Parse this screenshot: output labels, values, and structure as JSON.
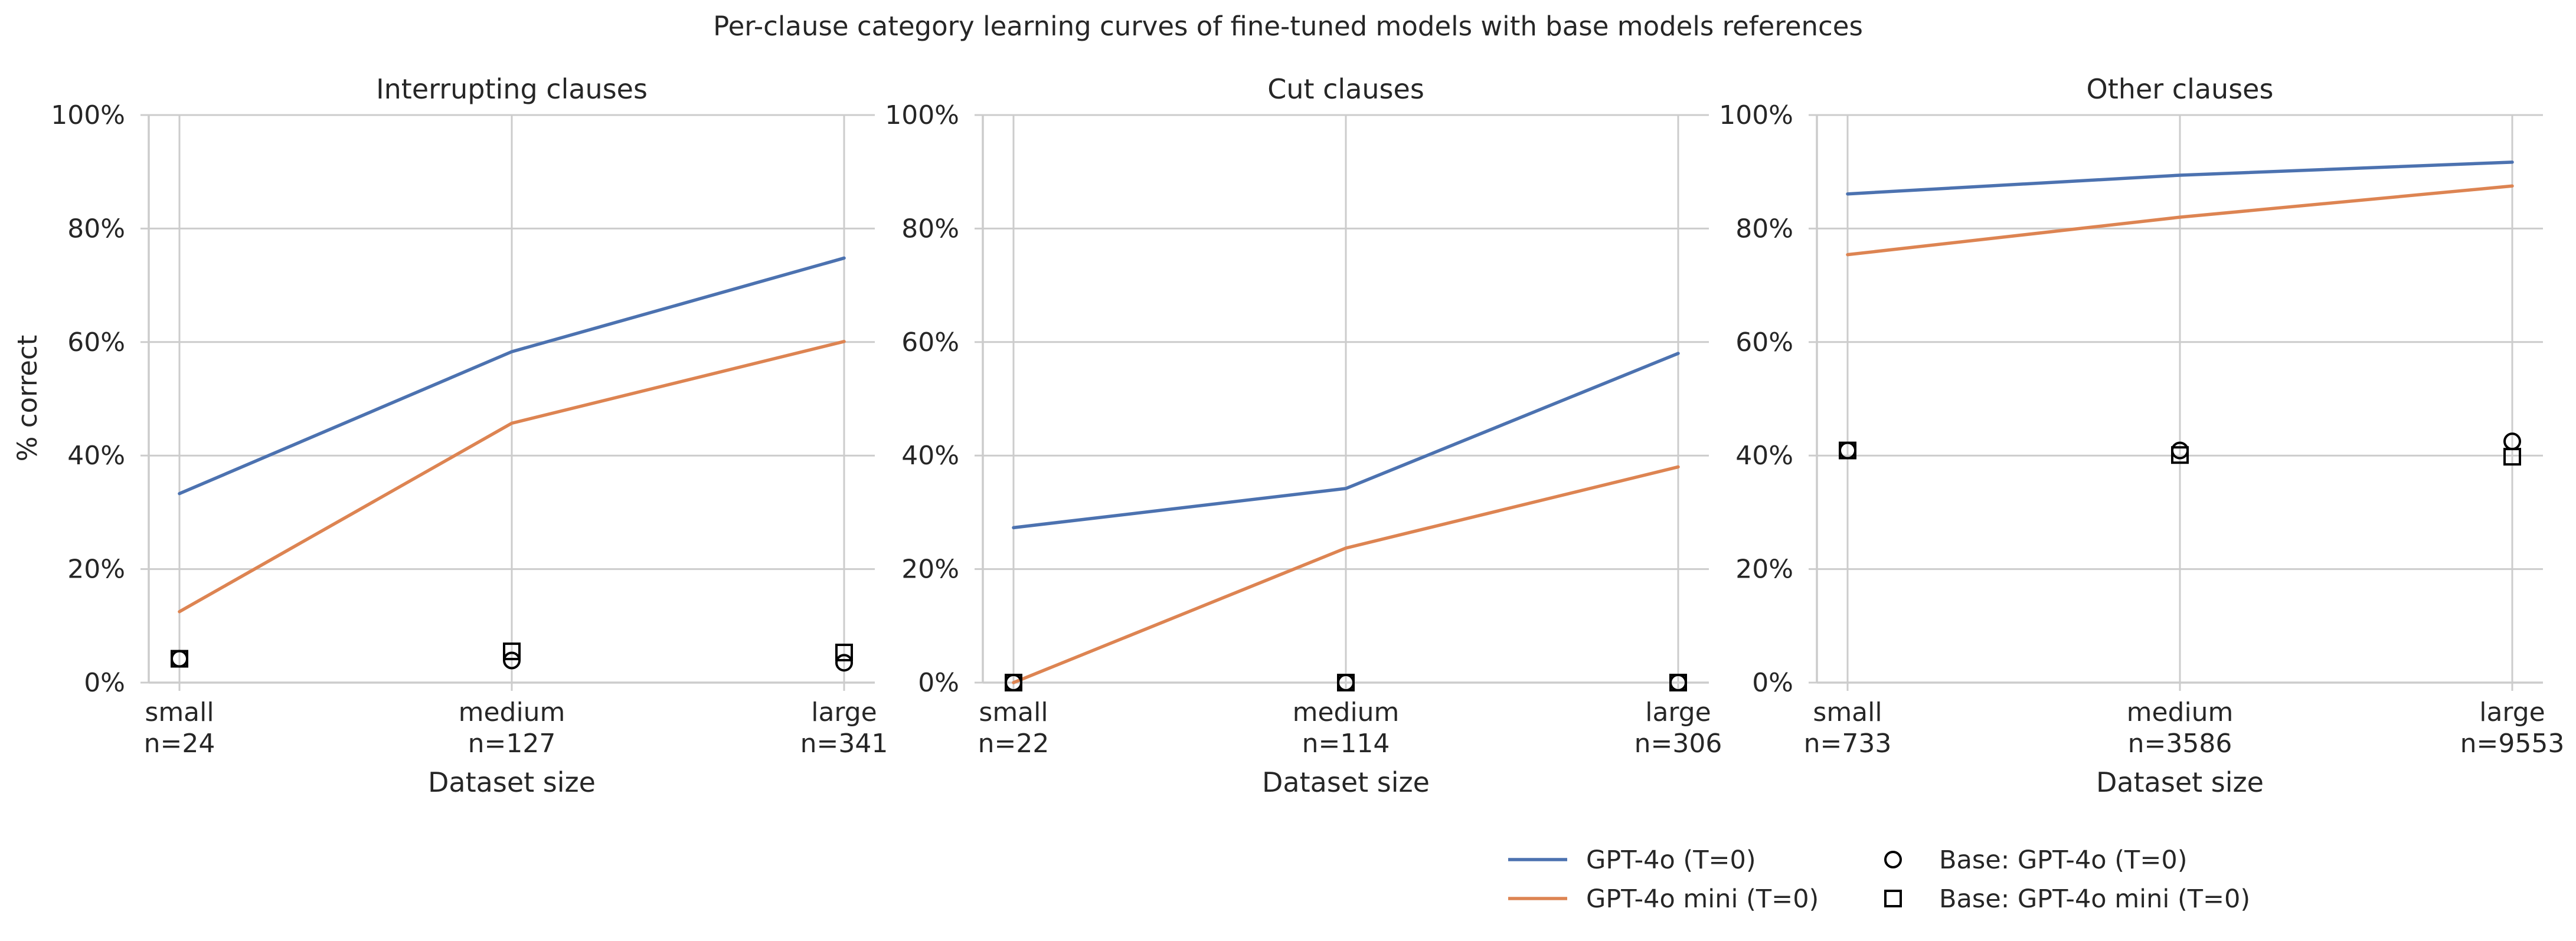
{
  "title": "Per-clause category learning curves of fine-tuned models with base models references",
  "ylabel": "% correct",
  "xlabel": "Dataset size",
  "legend": {
    "placement": "bottom-right",
    "entries": [
      {
        "label": "GPT-4o (T=0)",
        "kind": "line",
        "color": "#4c72b0"
      },
      {
        "label": "GPT-4o mini (T=0)",
        "kind": "line",
        "color": "#dd8452"
      },
      {
        "label": "Base: GPT-4o (T=0)",
        "kind": "circle",
        "color": "#000000"
      },
      {
        "label": "Base: GPT-4o mini (T=0)",
        "kind": "square",
        "color": "#000000"
      }
    ]
  },
  "chart_data": [
    {
      "type": "line",
      "title": "Interrupting clauses",
      "xlabel": "Dataset size",
      "ylabel": "% correct",
      "categories": [
        "small",
        "medium",
        "large"
      ],
      "n": [
        "n=24",
        "n=127",
        "n=341"
      ],
      "ylim": [
        0,
        100
      ],
      "yticks": [
        "0%",
        "20%",
        "40%",
        "60%",
        "80%",
        "100%"
      ],
      "grid": true,
      "series": [
        {
          "name": "GPT-4o (T=0)",
          "values": [
            33.3,
            58.3,
            74.8
          ],
          "color": "#4c72b0"
        },
        {
          "name": "GPT-4o mini (T=0)",
          "values": [
            12.5,
            45.7,
            60.1
          ],
          "color": "#dd8452"
        }
      ],
      "reference_points": [
        {
          "name": "Base: GPT-4o (T=0)",
          "marker": "circle",
          "values": [
            4.2,
            3.9,
            3.5
          ]
        },
        {
          "name": "Base: GPT-4o mini (T=0)",
          "marker": "square",
          "values": [
            4.2,
            5.5,
            5.3
          ]
        }
      ]
    },
    {
      "type": "line",
      "title": "Cut clauses",
      "xlabel": "Dataset size",
      "ylabel": "",
      "categories": [
        "small",
        "medium",
        "large"
      ],
      "n": [
        "n=22",
        "n=114",
        "n=306"
      ],
      "ylim": [
        0,
        100
      ],
      "yticks": [
        "0%",
        "20%",
        "40%",
        "60%",
        "80%",
        "100%"
      ],
      "grid": true,
      "series": [
        {
          "name": "GPT-4o (T=0)",
          "values": [
            27.3,
            34.2,
            58.0
          ],
          "color": "#4c72b0"
        },
        {
          "name": "GPT-4o mini (T=0)",
          "values": [
            0.0,
            23.7,
            38.0
          ],
          "color": "#dd8452"
        }
      ],
      "reference_points": [
        {
          "name": "Base: GPT-4o (T=0)",
          "marker": "circle",
          "values": [
            0.0,
            0.0,
            0.0
          ]
        },
        {
          "name": "Base: GPT-4o mini (T=0)",
          "marker": "square",
          "values": [
            0.0,
            0.0,
            0.0
          ]
        }
      ]
    },
    {
      "type": "line",
      "title": "Other clauses",
      "xlabel": "Dataset size",
      "ylabel": "",
      "categories": [
        "small",
        "medium",
        "large"
      ],
      "n": [
        "n=733",
        "n=3586",
        "n=9553"
      ],
      "ylim": [
        0,
        100
      ],
      "yticks": [
        "0%",
        "20%",
        "40%",
        "60%",
        "80%",
        "100%"
      ],
      "grid": true,
      "series": [
        {
          "name": "GPT-4o (T=0)",
          "values": [
            86.1,
            89.4,
            91.7
          ],
          "color": "#4c72b0"
        },
        {
          "name": "GPT-4o mini (T=0)",
          "values": [
            75.4,
            82.0,
            87.5
          ],
          "color": "#dd8452"
        }
      ],
      "reference_points": [
        {
          "name": "Base: GPT-4o (T=0)",
          "marker": "circle",
          "values": [
            40.9,
            40.9,
            42.5
          ]
        },
        {
          "name": "Base: GPT-4o mini (T=0)",
          "marker": "square",
          "values": [
            40.9,
            40.1,
            39.8
          ]
        }
      ]
    }
  ]
}
